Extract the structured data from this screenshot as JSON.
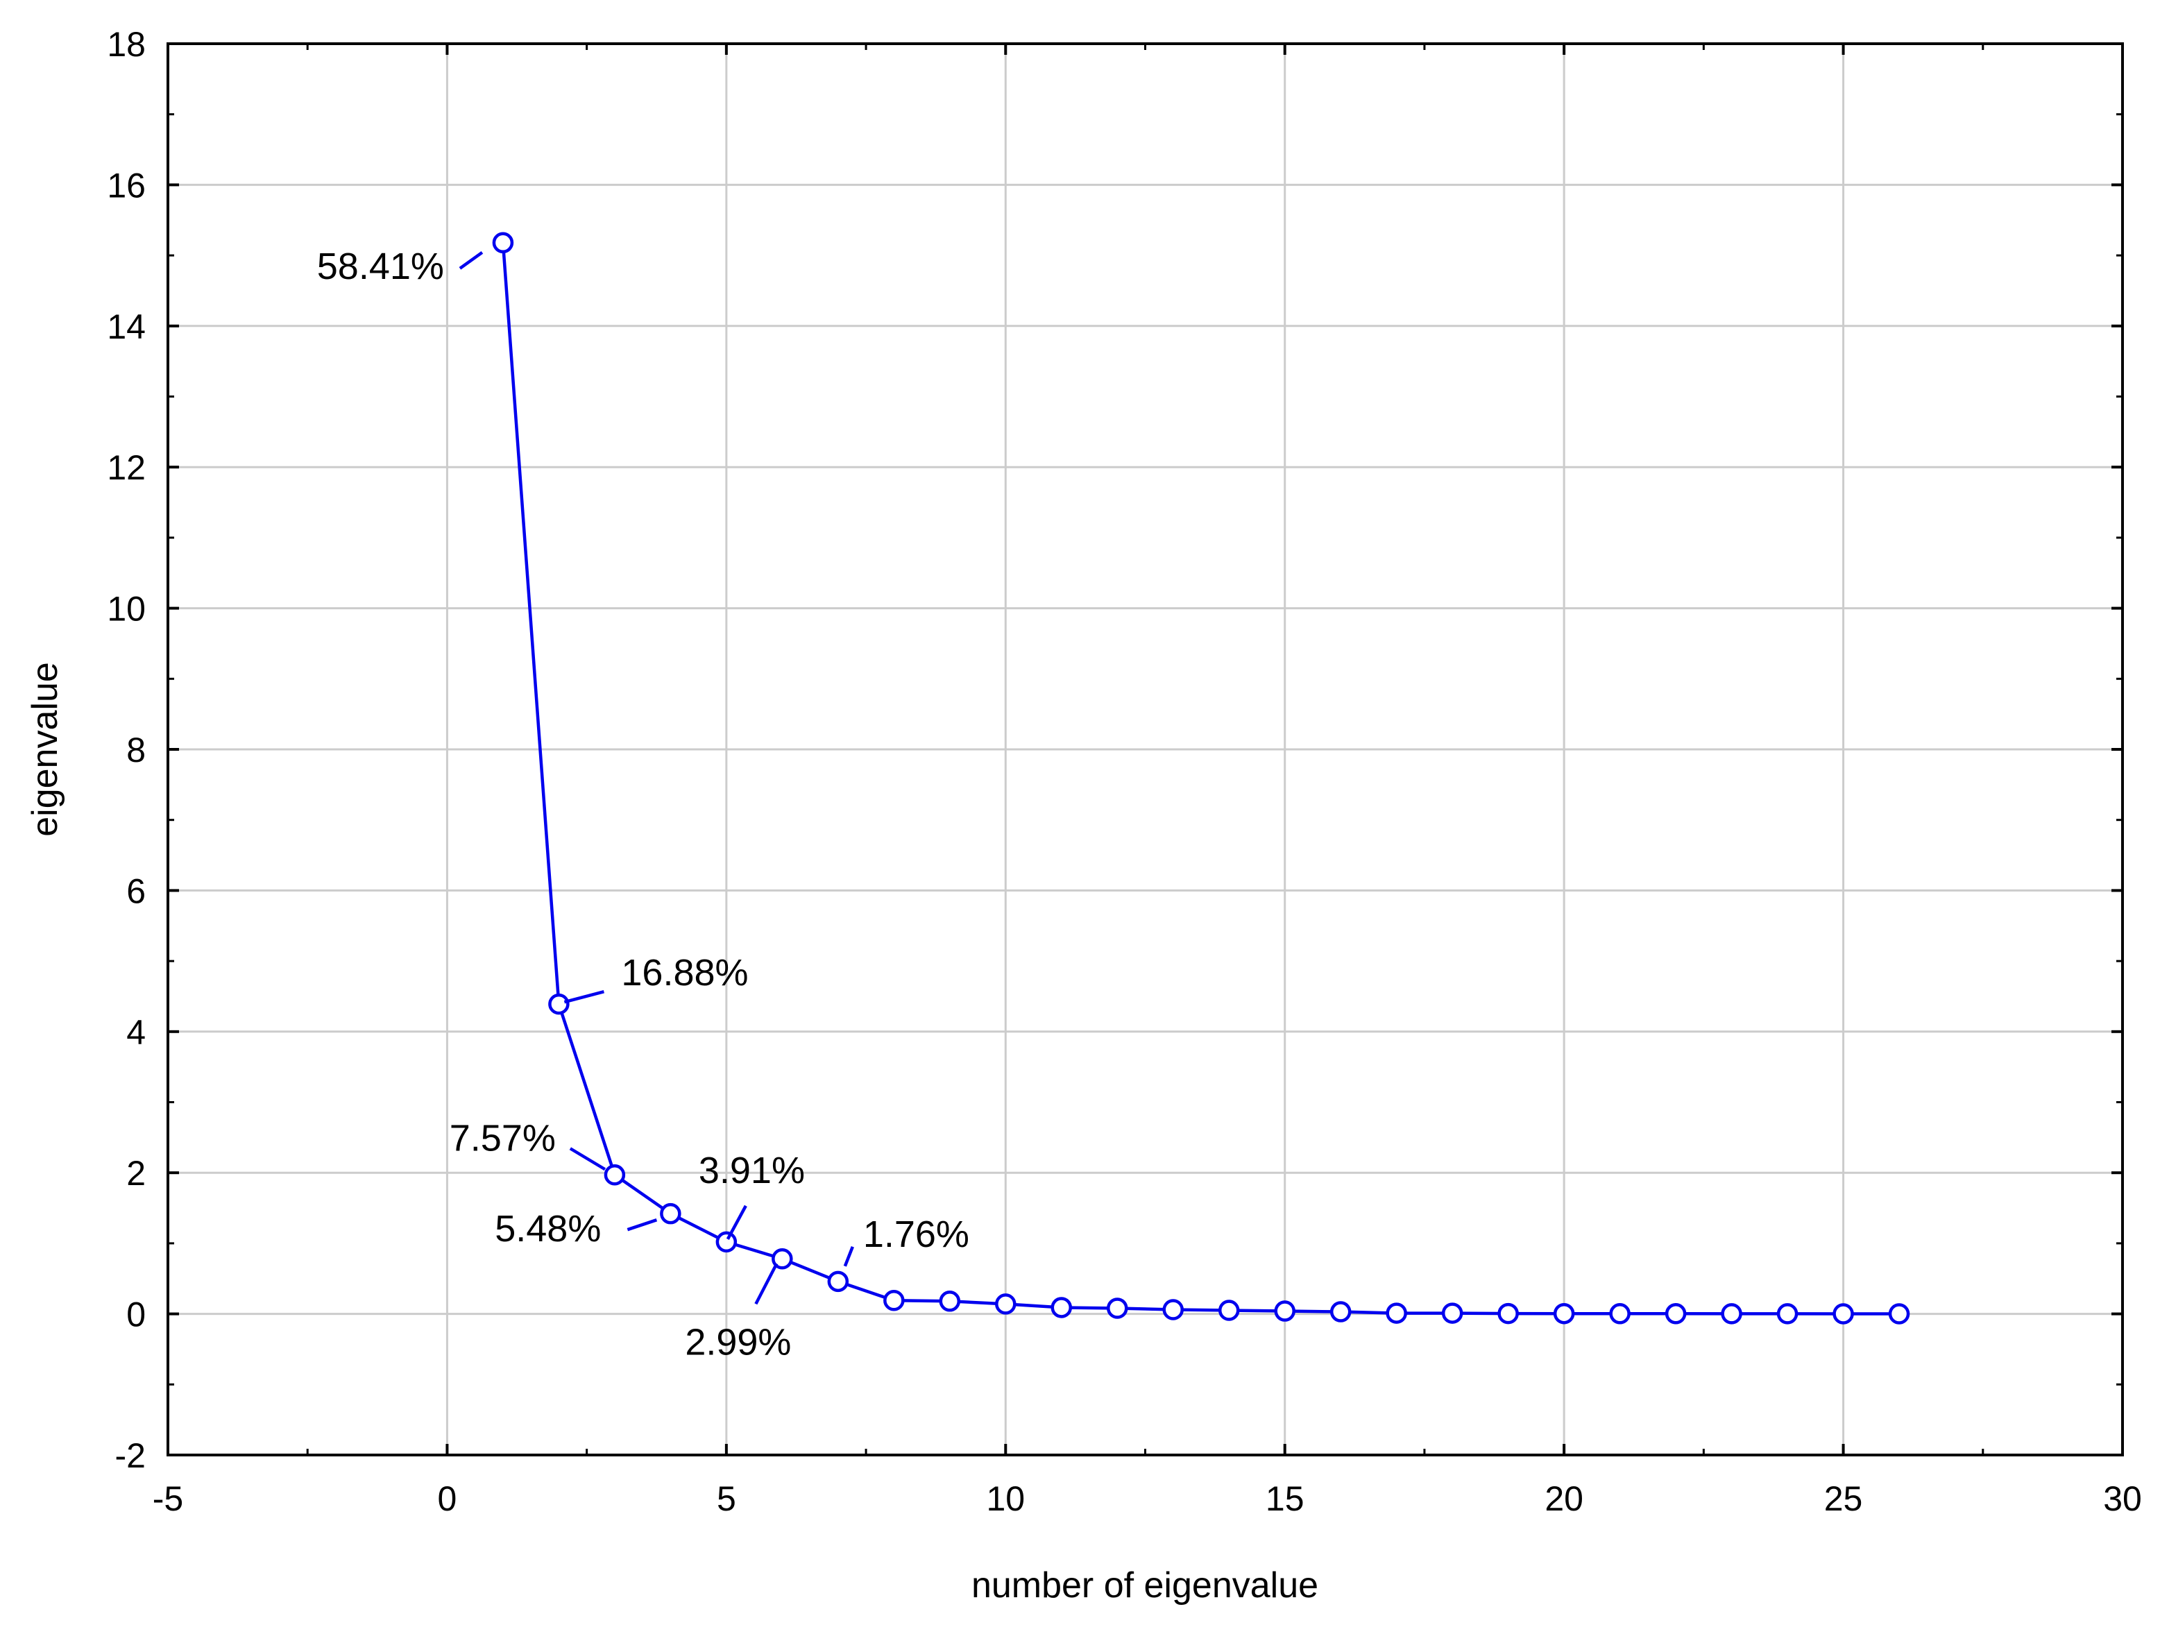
{
  "chart_data": {
    "type": "line",
    "title": "",
    "xlabel": "number of eigenvalue",
    "ylabel": "eigenvalue",
    "xlim": [
      -5,
      30
    ],
    "ylim": [
      -2,
      18
    ],
    "xticks": [
      -5,
      0,
      5,
      10,
      15,
      20,
      25,
      30
    ],
    "yticks": [
      -2,
      0,
      2,
      4,
      6,
      8,
      10,
      12,
      14,
      16,
      18
    ],
    "grid": true,
    "line_color": "#0000ee",
    "series": [
      {
        "x": [
          1,
          2,
          3,
          4,
          5,
          6,
          7,
          8,
          9,
          10,
          11,
          12,
          13,
          14,
          15,
          16,
          17,
          18,
          19,
          20,
          21,
          22,
          23,
          24,
          25,
          26
        ],
        "values": [
          15.18,
          4.39,
          1.97,
          1.42,
          1.02,
          0.78,
          0.46,
          0.19,
          0.18,
          0.14,
          0.09,
          0.08,
          0.06,
          0.05,
          0.04,
          0.03,
          0.01,
          0.01,
          0.005,
          0.004,
          0.003,
          0.003,
          0.002,
          0.002,
          0.001,
          0.001
        ]
      }
    ],
    "annotations": [
      {
        "text": "58.41%",
        "point_index": 0
      },
      {
        "text": "16.88%",
        "point_index": 1
      },
      {
        "text": "7.57%",
        "point_index": 2
      },
      {
        "text": "5.48%",
        "point_index": 3
      },
      {
        "text": "3.91%",
        "point_index": 4
      },
      {
        "text": "2.99%",
        "point_index": 5
      },
      {
        "text": "1.76%",
        "point_index": 6
      }
    ]
  }
}
